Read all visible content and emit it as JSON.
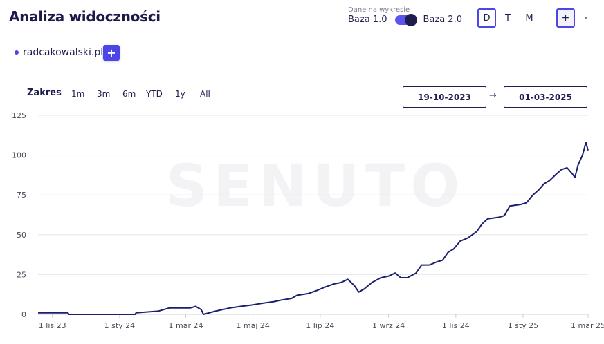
{
  "header": {
    "title": "Analiza widoczności",
    "data_caption": "Dane na wykresie",
    "base_left": "Baza 1.0",
    "base_right": "Baza 2.0",
    "granularity": [
      "D",
      "T",
      "M"
    ],
    "granularity_selected": "D",
    "zoom_in": "+",
    "zoom_out": "-"
  },
  "domains": {
    "items": [
      {
        "label": "radcakowalski.pl",
        "color": "#4c45e8"
      }
    ],
    "add_label": "+"
  },
  "range": {
    "label": "Zakres",
    "options": [
      "1m",
      "3m",
      "6m",
      "YTD",
      "1y",
      "All"
    ],
    "date_from": "19-10-2023",
    "arrow": "→",
    "date_to": "01-03-2025"
  },
  "watermark": "SENUTO",
  "chart_data": {
    "type": "line",
    "title": "",
    "xlabel": "",
    "ylabel": "",
    "ylim": [
      0,
      125
    ],
    "yticks": [
      0,
      25,
      50,
      75,
      100,
      125
    ],
    "grid": true,
    "x_start": "2023-10-19",
    "x_end": "2025-03-01",
    "x_ticks": [
      {
        "date": "2023-11-01",
        "label": "1 lis 23"
      },
      {
        "date": "2024-01-01",
        "label": "1 sty 24"
      },
      {
        "date": "2024-03-01",
        "label": "1 mar 24"
      },
      {
        "date": "2024-05-01",
        "label": "1 maj 24"
      },
      {
        "date": "2024-07-01",
        "label": "1 lip 24"
      },
      {
        "date": "2024-09-01",
        "label": "1 wrz 24"
      },
      {
        "date": "2024-11-01",
        "label": "1 lis 24"
      },
      {
        "date": "2025-01-01",
        "label": "1 sty 25"
      },
      {
        "date": "2025-03-01",
        "label": "1 mar 25"
      }
    ],
    "series": [
      {
        "color": "#1c1e6e",
        "points": [
          [
            "2023-10-19",
            1
          ],
          [
            "2023-11-15",
            1
          ],
          [
            "2023-11-16",
            0
          ],
          [
            "2024-01-15",
            0
          ],
          [
            "2024-01-16",
            1
          ],
          [
            "2024-02-05",
            2
          ],
          [
            "2024-02-15",
            4
          ],
          [
            "2024-02-25",
            4
          ],
          [
            "2024-03-05",
            4
          ],
          [
            "2024-03-10",
            5
          ],
          [
            "2024-03-15",
            3
          ],
          [
            "2024-03-17",
            0
          ],
          [
            "2024-03-28",
            2
          ],
          [
            "2024-04-10",
            4
          ],
          [
            "2024-04-20",
            5
          ],
          [
            "2024-05-01",
            6
          ],
          [
            "2024-05-10",
            7
          ],
          [
            "2024-05-20",
            8
          ],
          [
            "2024-05-27",
            9
          ],
          [
            "2024-06-05",
            10
          ],
          [
            "2024-06-10",
            12
          ],
          [
            "2024-06-20",
            13
          ],
          [
            "2024-06-28",
            15
          ],
          [
            "2024-07-05",
            17
          ],
          [
            "2024-07-13",
            19
          ],
          [
            "2024-07-20",
            20
          ],
          [
            "2024-07-26",
            22
          ],
          [
            "2024-08-01",
            18
          ],
          [
            "2024-08-05",
            14
          ],
          [
            "2024-08-10",
            16
          ],
          [
            "2024-08-17",
            20
          ],
          [
            "2024-08-25",
            23
          ],
          [
            "2024-09-01",
            24
          ],
          [
            "2024-09-07",
            26
          ],
          [
            "2024-09-12",
            23
          ],
          [
            "2024-09-18",
            23
          ],
          [
            "2024-09-26",
            26
          ],
          [
            "2024-10-01",
            31
          ],
          [
            "2024-10-08",
            31
          ],
          [
            "2024-10-15",
            33
          ],
          [
            "2024-10-20",
            34
          ],
          [
            "2024-10-25",
            39
          ],
          [
            "2024-10-30",
            41
          ],
          [
            "2024-11-05",
            46
          ],
          [
            "2024-11-12",
            48
          ],
          [
            "2024-11-16",
            50
          ],
          [
            "2024-11-20",
            52
          ],
          [
            "2024-11-25",
            57
          ],
          [
            "2024-11-30",
            60
          ],
          [
            "2024-12-10",
            61
          ],
          [
            "2024-12-15",
            62
          ],
          [
            "2024-12-20",
            68
          ],
          [
            "2024-12-30",
            69
          ],
          [
            "2025-01-04",
            70
          ],
          [
            "2025-01-10",
            75
          ],
          [
            "2025-01-15",
            78
          ],
          [
            "2025-01-20",
            82
          ],
          [
            "2025-01-25",
            84
          ],
          [
            "2025-01-31",
            88
          ],
          [
            "2025-02-05",
            91
          ],
          [
            "2025-02-10",
            92
          ],
          [
            "2025-02-15",
            88
          ],
          [
            "2025-02-17",
            86
          ],
          [
            "2025-02-20",
            94
          ],
          [
            "2025-02-24",
            100
          ],
          [
            "2025-02-27",
            108
          ],
          [
            "2025-03-01",
            103
          ]
        ]
      }
    ]
  }
}
